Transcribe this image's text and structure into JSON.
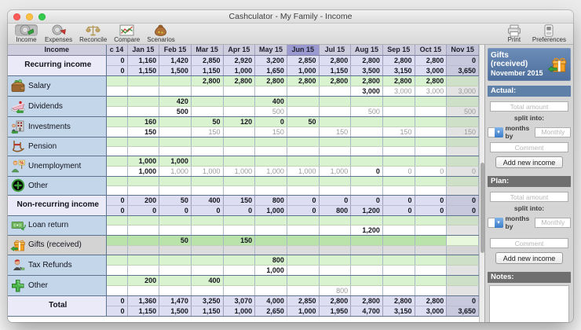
{
  "window": {
    "title": "Cashculator - My Family - Income"
  },
  "toolbar": {
    "left": [
      {
        "id": "income",
        "label": "Income",
        "icon": "income-icon",
        "selected": true
      },
      {
        "id": "expenses",
        "label": "Expenses",
        "icon": "expenses-icon",
        "selected": false
      },
      {
        "id": "reconcile",
        "label": "Reconcile",
        "icon": "reconcile-icon",
        "selected": false
      },
      {
        "id": "compare",
        "label": "Compare",
        "icon": "compare-icon",
        "selected": false
      },
      {
        "id": "scenarios",
        "label": "Scenarios",
        "icon": "scenarios-icon",
        "selected": false
      }
    ],
    "right": [
      {
        "id": "print",
        "label": "Print",
        "icon": "print-icon"
      },
      {
        "id": "preferences",
        "label": "Preferences",
        "icon": "preferences-icon"
      }
    ]
  },
  "grid": {
    "corner_label": "Income",
    "columns": [
      "c 14",
      "Jan 15",
      "Feb 15",
      "Mar 15",
      "Apr 15",
      "May 15",
      "Jun 15",
      "Jul 15",
      "Aug 15",
      "Sep 15",
      "Oct 15",
      "Nov 15"
    ],
    "highlighted_column": "Jun 15",
    "muted_value_prefix": "~",
    "rows": [
      {
        "type": "section",
        "label": "Recurring income",
        "actual": [
          "0",
          "1,160",
          "1,420",
          "2,850",
          "2,920",
          "3,200",
          "2,850",
          "2,800",
          "2,800",
          "2,800",
          "2,800",
          "0"
        ],
        "plan": [
          "0",
          "1,150",
          "1,500",
          "1,150",
          "1,000",
          "1,650",
          "1,000",
          "1,150",
          "3,500",
          "3,150",
          "3,000",
          "3,650"
        ]
      },
      {
        "type": "category",
        "label": "Salary",
        "icon": "salary-icon",
        "actual": [
          "",
          "",
          "",
          "2,800",
          "2,800",
          "2,800",
          "2,800",
          "2,800",
          "2,800",
          "2,800",
          "2,800",
          ""
        ],
        "plan": [
          "",
          "",
          "",
          "",
          "",
          "",
          "",
          "",
          "3,000",
          "~3,000",
          "~3,000",
          "~3,000"
        ]
      },
      {
        "type": "category",
        "label": "Dividends",
        "icon": "dividends-icon",
        "actual": [
          "",
          "",
          "420",
          "",
          "",
          "400",
          "",
          "",
          "",
          "",
          "",
          ""
        ],
        "plan": [
          "",
          "",
          "500",
          "",
          "",
          "~500",
          "",
          "",
          "~500",
          "",
          "",
          "~500"
        ]
      },
      {
        "type": "category",
        "label": "Investments",
        "icon": "investments-icon",
        "actual": [
          "",
          "160",
          "",
          "50",
          "120",
          "0",
          "50",
          "",
          "",
          "",
          "",
          ""
        ],
        "plan": [
          "",
          "150",
          "",
          "~150",
          "",
          "~150",
          "",
          "~150",
          "",
          "~150",
          "",
          "~150"
        ]
      },
      {
        "type": "category",
        "label": "Pension",
        "icon": "pension-icon",
        "actual": [
          "",
          "",
          "",
          "",
          "",
          "",
          "",
          "",
          "",
          "",
          "",
          ""
        ],
        "plan": [
          "",
          "",
          "",
          "",
          "",
          "",
          "",
          "",
          "",
          "",
          "",
          ""
        ]
      },
      {
        "type": "category",
        "label": "Unemployment",
        "icon": "unemployment-icon",
        "actual": [
          "",
          "1,000",
          "1,000",
          "",
          "",
          "",
          "",
          "",
          "",
          "",
          "",
          ""
        ],
        "plan": [
          "",
          "1,000",
          "~1,000",
          "~1,000",
          "~1,000",
          "~1,000",
          "~1,000",
          "~1,000",
          "0",
          "~0",
          "~0",
          "~0"
        ]
      },
      {
        "type": "category",
        "label": "Other",
        "icon": "other-income-icon",
        "actual": [
          "",
          "",
          "",
          "",
          "",
          "",
          "",
          "",
          "",
          "",
          "",
          ""
        ],
        "plan": [
          "",
          "",
          "",
          "",
          "",
          "",
          "",
          "",
          "",
          "",
          "",
          ""
        ]
      },
      {
        "type": "section",
        "label": "Non-recurring income",
        "actual": [
          "0",
          "200",
          "50",
          "400",
          "150",
          "800",
          "0",
          "0",
          "0",
          "0",
          "0",
          "0"
        ],
        "plan": [
          "0",
          "0",
          "0",
          "0",
          "0",
          "1,000",
          "0",
          "800",
          "1,200",
          "0",
          "0",
          "0"
        ]
      },
      {
        "type": "category",
        "label": "Loan return",
        "icon": "loan-return-icon",
        "actual": [
          "",
          "",
          "",
          "",
          "",
          "",
          "",
          "",
          "",
          "",
          "",
          ""
        ],
        "plan": [
          "",
          "",
          "",
          "",
          "",
          "",
          "",
          "",
          "1,200",
          "",
          "",
          ""
        ]
      },
      {
        "type": "category",
        "label": "Gifts (received)",
        "icon": "gifts-icon",
        "selected": true,
        "actual": [
          "",
          "",
          "50",
          "",
          "150",
          "",
          "",
          "",
          "",
          "",
          "",
          ""
        ],
        "plan": [
          "",
          "",
          "",
          "",
          "",
          "",
          "",
          "",
          "",
          "",
          "",
          ""
        ]
      },
      {
        "type": "category",
        "label": "Tax Refunds",
        "icon": "tax-refunds-icon",
        "actual": [
          "",
          "",
          "",
          "",
          "",
          "800",
          "",
          "",
          "",
          "",
          "",
          ""
        ],
        "plan": [
          "",
          "",
          "",
          "",
          "",
          "1,000",
          "",
          "",
          "",
          "",
          "",
          ""
        ]
      },
      {
        "type": "category",
        "label": "Other",
        "icon": "other-nonrecurring-icon",
        "actual": [
          "",
          "200",
          "",
          "400",
          "",
          "",
          "",
          "",
          "",
          "",
          "",
          ""
        ],
        "plan": [
          "",
          "",
          "",
          "",
          "",
          "",
          "",
          "~800",
          "",
          "",
          "",
          ""
        ]
      },
      {
        "type": "section",
        "label": "Total",
        "actual": [
          "0",
          "1,360",
          "1,470",
          "3,250",
          "3,070",
          "4,000",
          "2,850",
          "2,800",
          "2,800",
          "2,800",
          "2,800",
          "0"
        ],
        "plan": [
          "0",
          "1,150",
          "1,500",
          "1,150",
          "1,000",
          "2,650",
          "1,000",
          "1,950",
          "4,700",
          "3,150",
          "3,000",
          "3,650"
        ]
      }
    ]
  },
  "inspector": {
    "header": {
      "category": "Gifts (received)",
      "period": "November 2015",
      "icon": "gift-icon"
    },
    "actual": {
      "title": "Actual:",
      "total_placeholder": "Total amount",
      "split_label": "split into:",
      "months_label": "months by",
      "monthly_placeholder": "Monthly",
      "comment_placeholder": "Comment",
      "add_button": "Add new income"
    },
    "plan": {
      "title": "Plan:",
      "total_placeholder": "Total amount",
      "split_label": "split into:",
      "months_label": "months by",
      "monthly_placeholder": "Monthly",
      "comment_placeholder": "Comment",
      "add_button": "Add new income"
    },
    "notes": {
      "title": "Notes:",
      "content": ""
    }
  },
  "colors": {
    "actual_row_green": "#d9f2cf",
    "selected_row_green": "#b9e3ab",
    "plan_row_white": "#ffffff",
    "section_row_lavender": "#dedef2",
    "header_lavender": "#cdcdde",
    "selected_month_header_purple": "#9a9ad0",
    "future_column_gray": "#e3e3e3",
    "muted_value_text": "#9b9b9b",
    "category_label_blue": "#c4d7ea",
    "inspector_header_blue": "#5a7cab",
    "inspector_section_gray": "#6f6f6f"
  }
}
